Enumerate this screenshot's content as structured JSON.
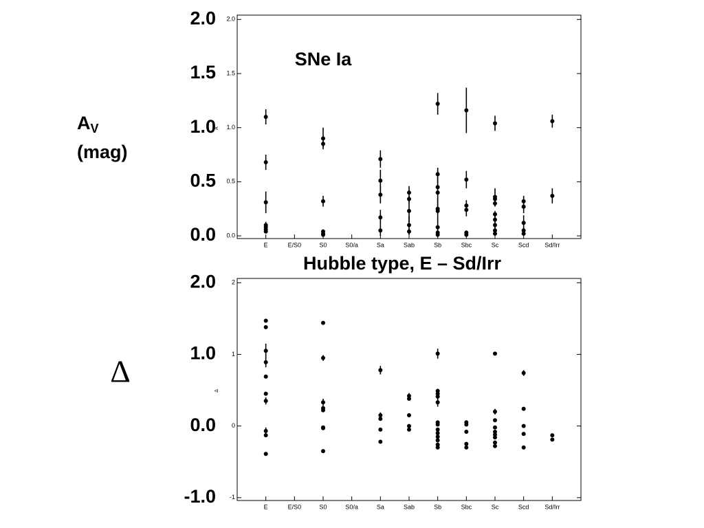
{
  "chart_data": [
    {
      "type": "scatter",
      "annotation": "SNe Ia",
      "ylabel": {
        "main": "A",
        "subscript": "V",
        "unit": "(mag)"
      },
      "axis_ylabel": "A",
      "xlabel": "Hubble type, E – Sd/Irr",
      "categories": [
        "E",
        "E/S0",
        "S0",
        "S0/a",
        "Sa",
        "Sab",
        "Sb",
        "Sbc",
        "Sc",
        "Scd",
        "Sd/Irr"
      ],
      "ylim": [
        -0.025,
        2.04
      ],
      "yticks": [
        {
          "value": 0,
          "label": "0.0"
        },
        {
          "value": 0.5,
          "label": "0.5"
        },
        {
          "value": 1,
          "label": "1.0"
        },
        {
          "value": 1.5,
          "label": "1.5"
        },
        {
          "value": 2,
          "label": "2.0"
        }
      ],
      "outer_yticks": [
        {
          "value": 0,
          "label": "0.0"
        },
        {
          "value": 0.5,
          "label": "0.5"
        },
        {
          "value": 1,
          "label": "1.0"
        },
        {
          "value": 1.5,
          "label": "1.5"
        },
        {
          "value": 2,
          "label": "2.0"
        }
      ],
      "color": "#000000",
      "x": [
        "E",
        "E",
        "E",
        "E",
        "E",
        "E",
        "E",
        "S0",
        "S0",
        "S0",
        "S0",
        "S0",
        "S0",
        "Sa",
        "Sa",
        "Sa",
        "Sa",
        "Sa",
        "Sab",
        "Sab",
        "Sab",
        "Sab",
        "Sab",
        "Sb",
        "Sb",
        "Sb",
        "Sb",
        "Sb",
        "Sb",
        "Sb",
        "Sb",
        "Sb",
        "Sbc",
        "Sbc",
        "Sbc",
        "Sbc",
        "Sbc",
        "Sbc",
        "Sc",
        "Sc",
        "Sc",
        "Sc",
        "Sc",
        "Sc",
        "Sc",
        "Sc",
        "Sc",
        "Scd",
        "Scd",
        "Scd",
        "Scd",
        "Scd",
        "Sd/Irr",
        "Sd/Irr"
      ],
      "values": [
        1.1,
        0.68,
        0.31,
        0.1,
        0.08,
        0.06,
        0.04,
        0.9,
        0.85,
        0.32,
        0.04,
        0.02,
        0.01,
        0.71,
        0.51,
        0.38,
        0.17,
        0.05,
        0.4,
        0.34,
        0.23,
        0.1,
        0.04,
        1.22,
        0.57,
        0.45,
        0.4,
        0.25,
        0.23,
        0.08,
        0.03,
        0.01,
        1.16,
        0.52,
        0.28,
        0.24,
        0.03,
        0.01,
        1.04,
        0.36,
        0.34,
        0.3,
        0.2,
        0.15,
        0.1,
        0.05,
        0.02,
        0.32,
        0.27,
        0.12,
        0.05,
        0.02,
        1.06,
        0.37
      ],
      "errors": [
        0.07,
        0.07,
        0.1,
        0.03,
        0,
        0,
        0,
        0.1,
        0.03,
        0.05,
        0.02,
        0,
        0,
        0.08,
        0.1,
        0.08,
        0.07,
        0.05,
        0.06,
        0.03,
        0.1,
        0.08,
        0.03,
        0.1,
        0.06,
        0.07,
        0.15,
        0.1,
        0.03,
        0.08,
        0.03,
        0,
        0.21,
        0.08,
        0.05,
        0.06,
        0.02,
        0,
        0.07,
        0.08,
        0.03,
        0.03,
        0.03,
        0.03,
        0.03,
        0.03,
        0,
        0.05,
        0.06,
        0.07,
        0.03,
        0,
        0.06,
        0.07
      ]
    },
    {
      "type": "scatter",
      "ylabel": {
        "main": "Δ"
      },
      "axis_ylabel": "Δ",
      "categories": [
        "E",
        "E/S0",
        "S0",
        "S0/a",
        "Sa",
        "Sab",
        "Sb",
        "Sbc",
        "Sc",
        "Scd",
        "Sd/Irr"
      ],
      "ylim": [
        -1.04,
        2.06
      ],
      "yticks": [
        -1,
        0,
        1,
        2
      ],
      "outer_yticks": [
        {
          "value": -1,
          "label": "-1.0"
        },
        {
          "value": 0,
          "label": "0.0"
        },
        {
          "value": 1,
          "label": "1.0"
        },
        {
          "value": 2,
          "label": "2.0"
        }
      ],
      "color": "#000000",
      "x": [
        "E",
        "E",
        "E",
        "E",
        "E",
        "E",
        "E",
        "E",
        "E",
        "E",
        "S0",
        "S0",
        "S0",
        "S0",
        "S0",
        "S0",
        "S0",
        "S0",
        "Sa",
        "Sa",
        "Sa",
        "Sa",
        "Sa",
        "Sab",
        "Sab",
        "Sab",
        "Sab",
        "Sab",
        "Sb",
        "Sb",
        "Sb",
        "Sb",
        "Sb",
        "Sb",
        "Sb",
        "Sb",
        "Sb",
        "Sb",
        "Sb",
        "Sb",
        "Sb",
        "Sbc",
        "Sbc",
        "Sbc",
        "Sbc",
        "Sbc",
        "Sc",
        "Sc",
        "Sc",
        "Sc",
        "Sc",
        "Sc",
        "Sc",
        "Sc",
        "Sc",
        "Scd",
        "Scd",
        "Scd",
        "Scd",
        "Scd",
        "Sd/Irr",
        "Sd/Irr"
      ],
      "values": [
        1.47,
        1.38,
        1.05,
        0.89,
        0.69,
        0.45,
        0.35,
        -0.07,
        -0.13,
        -0.39,
        1.44,
        0.95,
        0.33,
        0.25,
        0.22,
        -0.02,
        -0.03,
        -0.35,
        0.78,
        0.15,
        0.1,
        -0.05,
        -0.22,
        0.42,
        0.38,
        0.15,
        0.0,
        -0.05,
        1.01,
        0.49,
        0.45,
        0.41,
        0.33,
        0.05,
        0.02,
        -0.05,
        -0.1,
        -0.15,
        -0.2,
        -0.26,
        -0.3,
        0.05,
        0.02,
        -0.08,
        -0.25,
        -0.3,
        1.01,
        0.2,
        0.08,
        -0.02,
        -0.08,
        -0.12,
        -0.16,
        -0.23,
        -0.28,
        0.74,
        0.24,
        0.0,
        -0.11,
        -0.3,
        -0.13,
        -0.19
      ],
      "errors": [
        0,
        0,
        0.1,
        0.07,
        0,
        0,
        0.05,
        0.05,
        0,
        0,
        0,
        0.04,
        0.05,
        0,
        0,
        0,
        0,
        0,
        0.06,
        0.04,
        0,
        0,
        0,
        0.04,
        0,
        0,
        0,
        0,
        0.07,
        0.03,
        0,
        0.03,
        0.06,
        0,
        0,
        0,
        0,
        0,
        0,
        0,
        0,
        0.03,
        0,
        0,
        0,
        0,
        0,
        0.04,
        0,
        0,
        0,
        0,
        0,
        0,
        0,
        0.04,
        0,
        0,
        0,
        0,
        0,
        0
      ]
    }
  ]
}
